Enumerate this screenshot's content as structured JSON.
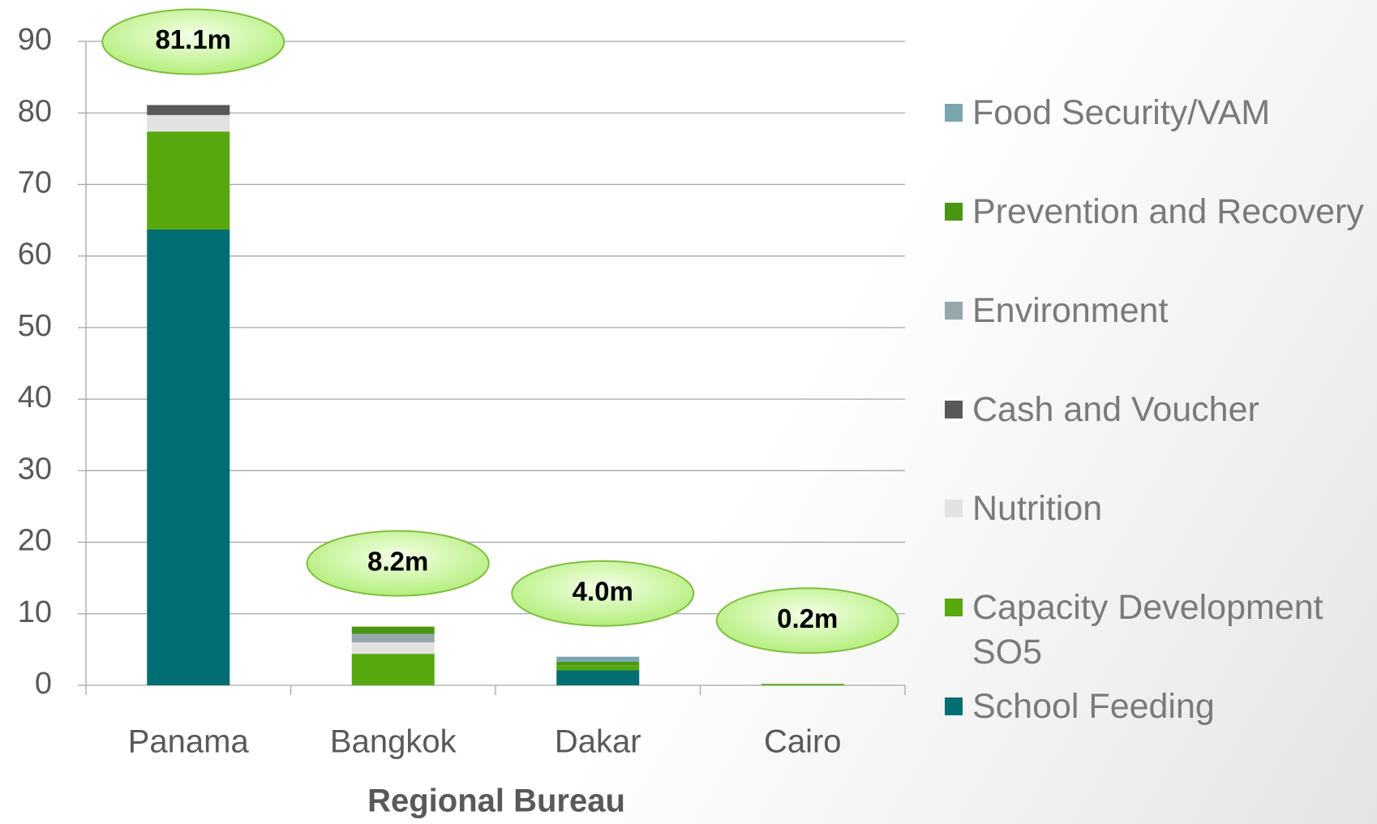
{
  "chart_data": {
    "type": "bar",
    "stacked": true,
    "x_label": "Regional Bureau",
    "categories": [
      "Panama",
      "Bangkok",
      "Dakar",
      "Cairo"
    ],
    "series": [
      {
        "name": "School Feeding",
        "color": "#006e73",
        "values": [
          63.7,
          0,
          2.1,
          0
        ]
      },
      {
        "name": "Capacity Development SO5",
        "color": "#57a80e",
        "values": [
          13.7,
          4.4,
          0.7,
          0.2
        ]
      },
      {
        "name": "Nutrition",
        "color": "#e2e2e2",
        "values": [
          2.3,
          1.6,
          0,
          0
        ]
      },
      {
        "name": "Cash and Voucher",
        "color": "#595959",
        "values": [
          1.4,
          0,
          0,
          0
        ]
      },
      {
        "name": "Environment",
        "color": "#95a9ac",
        "values": [
          0,
          1.2,
          0,
          0
        ]
      },
      {
        "name": "Prevention and Recovery",
        "color": "#4a9612",
        "values": [
          0,
          1.0,
          0.5,
          0
        ]
      },
      {
        "name": "Food Security/VAM",
        "color": "#7aa6b0",
        "values": [
          0,
          0,
          0.7,
          0
        ]
      }
    ],
    "totals": [
      81.1,
      8.2,
      4.0,
      0.2
    ],
    "value_labels": [
      "81.1m",
      "8.2m",
      "4.0m",
      "0.2m"
    ],
    "ylim": [
      0,
      90
    ],
    "yticks": [
      0,
      10,
      20,
      30,
      40,
      50,
      60,
      70,
      80,
      90
    ],
    "grid": true
  }
}
